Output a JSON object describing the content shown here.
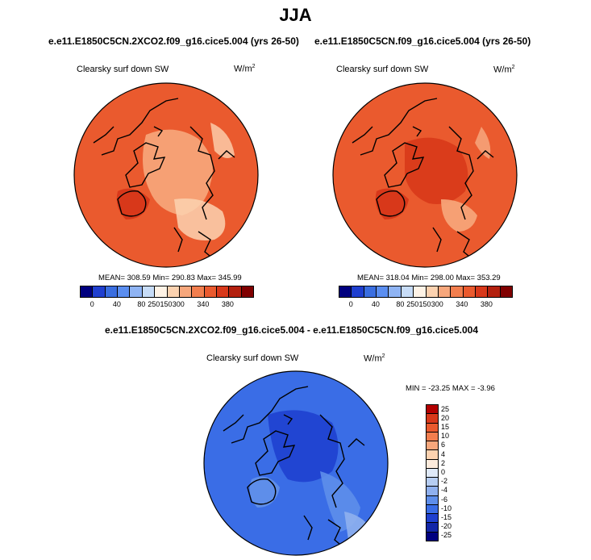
{
  "title": "JJA",
  "panels": [
    {
      "case": "e.e11.E1850C5CN.2XCO2.f09_g16.cice5.004 (yrs 26-50)",
      "variable": "Clearsky surf down SW",
      "units": "W/m",
      "units_exp": "2",
      "stats": "MEAN= 308.59  Min= 290.83  Max= 345.99"
    },
    {
      "case": "e.e11.E1850C5CN.f09_g16.cice5.004 (yrs 26-50)",
      "variable": "Clearsky surf down SW",
      "units": "W/m",
      "units_exp": "2",
      "stats": "MEAN= 318.04  Min= 298.00  Max= 353.29"
    }
  ],
  "diff": {
    "case": "e.e11.E1850C5CN.2XCO2.f09_g16.cice5.004 - e.e11.E1850C5CN.f09_g16.cice5.004",
    "variable": "Clearsky surf down SW",
    "units": "W/m",
    "units_exp": "2",
    "stats": "MIN = -23.25 MAX =  -3.96"
  },
  "colors": {
    "abs_scale": [
      "#00007f",
      "#1f3fcf",
      "#3a6ee0",
      "#5b8ef0",
      "#8fb4f4",
      "#c7dcf7",
      "#fff3e6",
      "#fcd2b0",
      "#f7a77c",
      "#f27e4e",
      "#ea5a2e",
      "#d8381a",
      "#b3200e",
      "#800000"
    ],
    "diff_scale": [
      "#b30000",
      "#d8381a",
      "#ea5a2e",
      "#f27e4e",
      "#f7a77c",
      "#fcd2b0",
      "#fdebdc",
      "#dfe9f8",
      "#b6cdf2",
      "#8fb0ee",
      "#5e8eea",
      "#3a6de6",
      "#1f40cf",
      "#1226a8",
      "#00007f"
    ]
  },
  "chart_data": [
    {
      "type": "heatmap",
      "projection": "north polar stereographic",
      "title": "e.e11.E1850C5CN.2XCO2.f09_g16.cice5.004 (yrs 26-50)",
      "field": "Clearsky surf down SW",
      "units": "W/m2",
      "mean": 308.59,
      "min": 290.83,
      "max": 345.99,
      "colorbar_ticks": [
        0,
        40,
        80,
        150,
        250,
        300,
        340,
        380
      ],
      "colorbar_levels": [
        0,
        20,
        40,
        60,
        80,
        100,
        150,
        200,
        250,
        280,
        300,
        320,
        340,
        360,
        380
      ]
    },
    {
      "type": "heatmap",
      "projection": "north polar stereographic",
      "title": "e.e11.E1850C5CN.f09_g16.cice5.004 (yrs 26-50)",
      "field": "Clearsky surf down SW",
      "units": "W/m2",
      "mean": 318.04,
      "min": 298.0,
      "max": 353.29,
      "colorbar_ticks": [
        0,
        40,
        80,
        150,
        250,
        300,
        340,
        380
      ],
      "colorbar_levels": [
        0,
        20,
        40,
        60,
        80,
        100,
        150,
        200,
        250,
        280,
        300,
        320,
        340,
        360,
        380
      ]
    },
    {
      "type": "heatmap",
      "projection": "north polar stereographic",
      "title": "e.e11.E1850C5CN.2XCO2.f09_g16.cice5.004 - e.e11.E1850C5CN.f09_g16.cice5.004",
      "field": "Clearsky surf down SW",
      "units": "W/m2",
      "min": -23.25,
      "max": -3.96,
      "colorbar_ticks": [
        25,
        20,
        15,
        10,
        6,
        4,
        2,
        0,
        -2,
        -4,
        -6,
        -10,
        -15,
        -20,
        -25
      ]
    }
  ]
}
